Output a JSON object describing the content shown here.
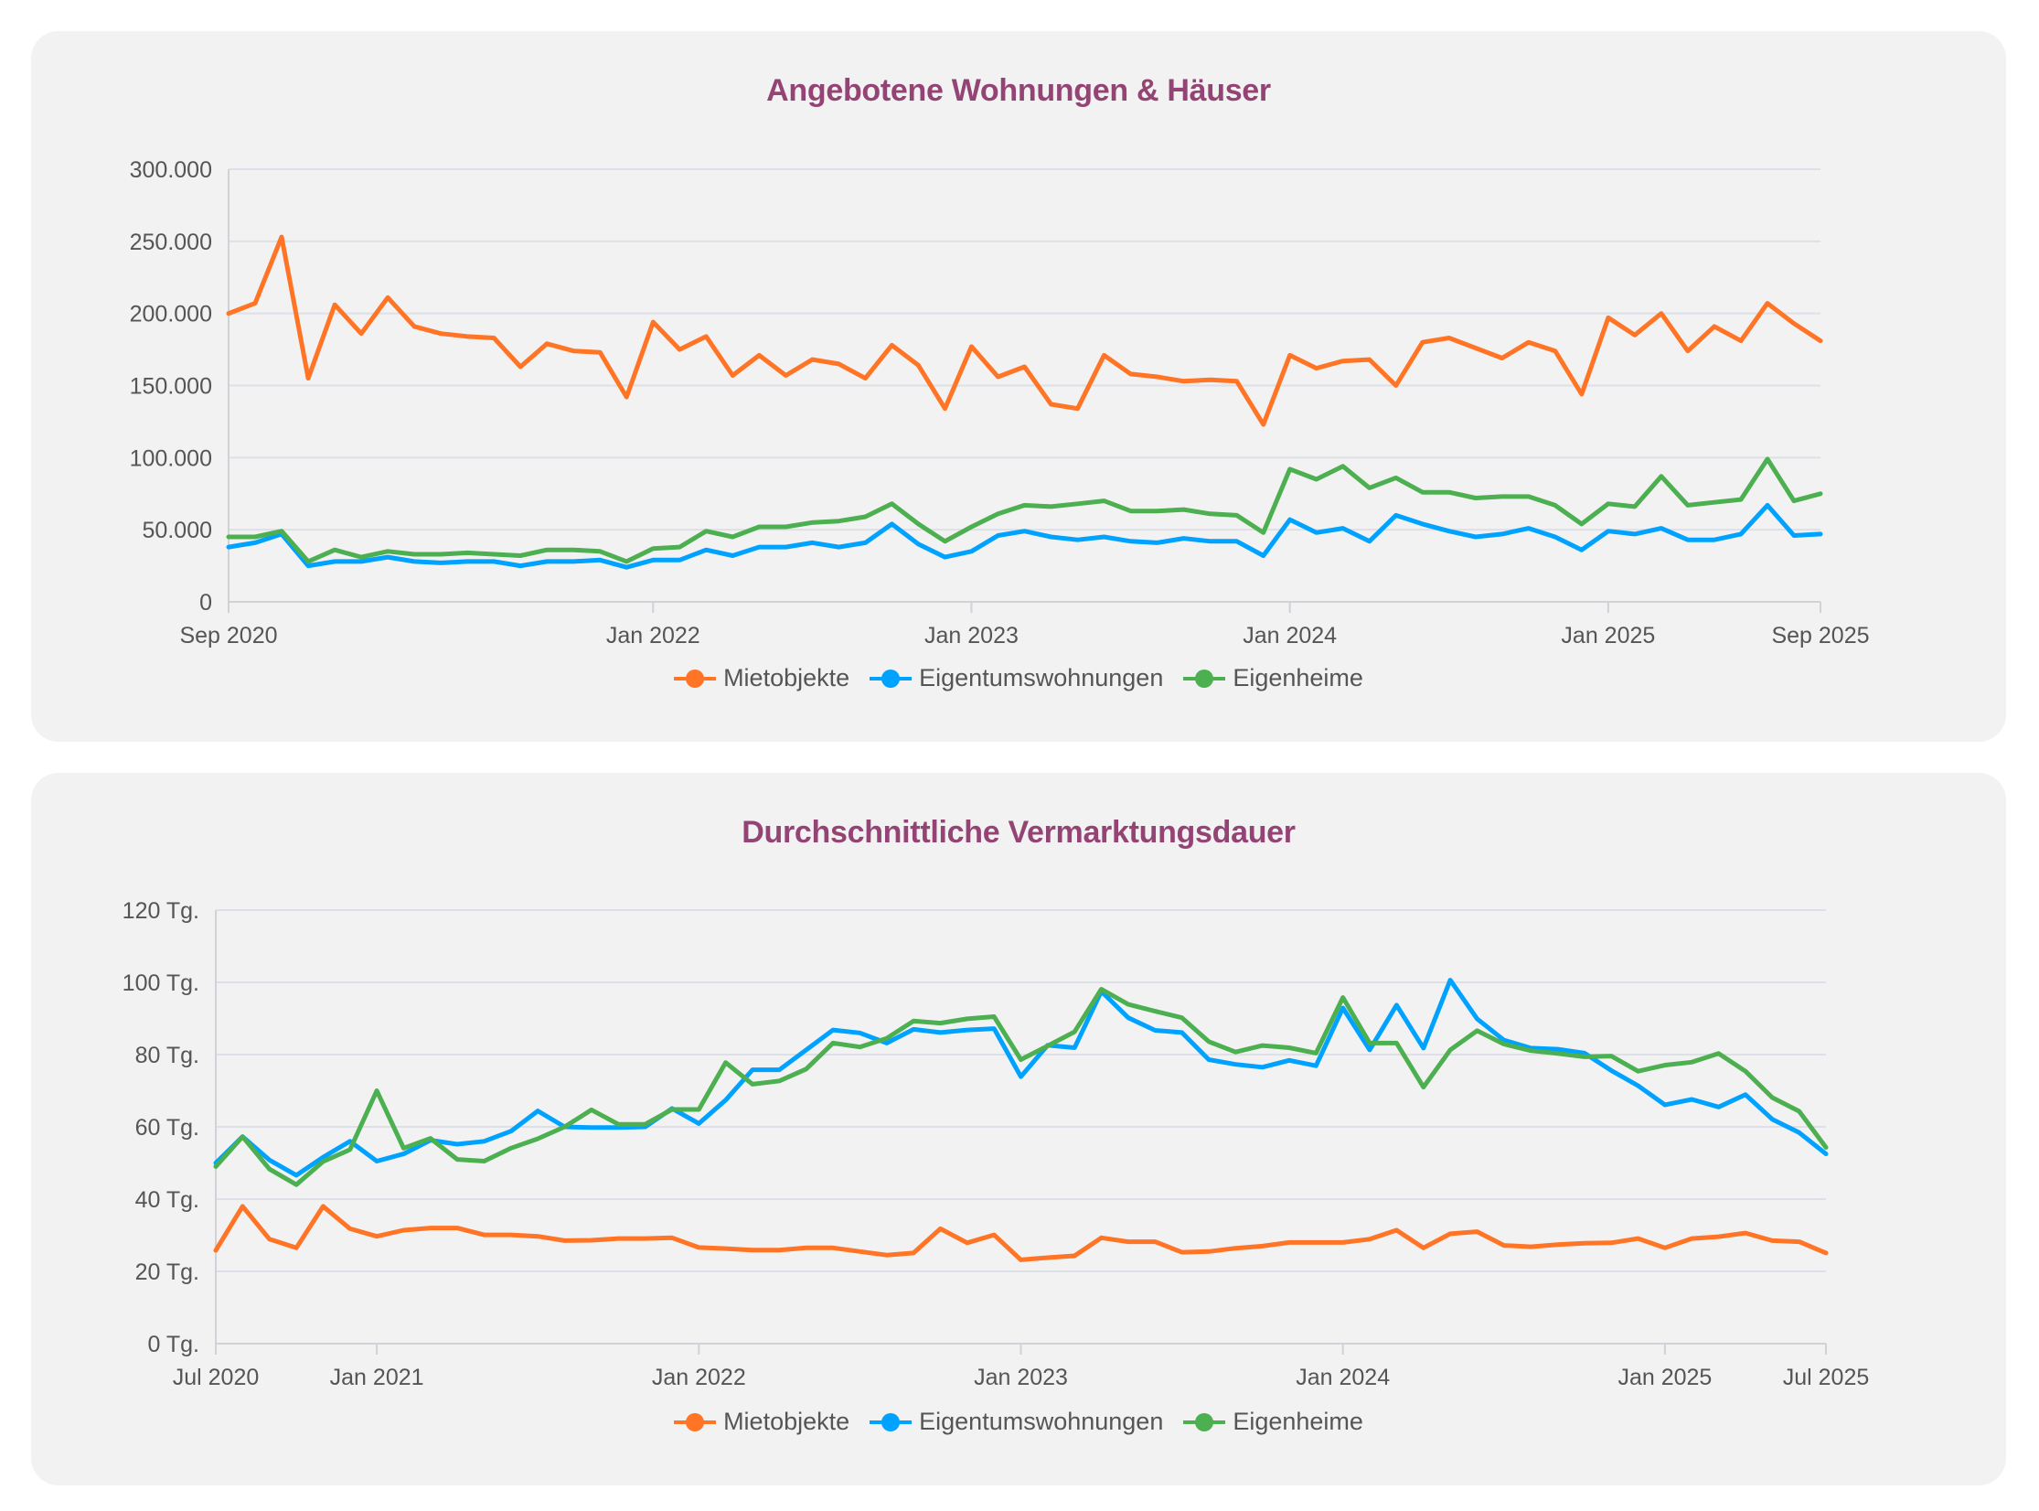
{
  "colors": {
    "mietobjekte": "#ff7425",
    "eigentumswohnungen": "#00a2ff",
    "eigenheime": "#4caf50",
    "title": "#944474"
  },
  "chart_data": [
    {
      "type": "line",
      "title": "Angebotene Wohnungen & Häuser",
      "ylim": [
        0,
        300000
      ],
      "grid": true,
      "legend": "bottom",
      "y_ticks": [
        {
          "value": 0,
          "label": "0"
        },
        {
          "value": 50000,
          "label": "50.000"
        },
        {
          "value": 100000,
          "label": "100.000"
        },
        {
          "value": 150000,
          "label": "150.000"
        },
        {
          "value": 200000,
          "label": "200.000"
        },
        {
          "value": 250000,
          "label": "250.000"
        },
        {
          "value": 300000,
          "label": "300.000"
        }
      ],
      "x_ticks": [
        {
          "x": "2020-09",
          "label": "Sep 2020"
        },
        {
          "x": "2022-01",
          "label": "Jan 2022"
        },
        {
          "x": "2023-01",
          "label": "Jan 2023"
        },
        {
          "x": "2024-01",
          "label": "Jan 2024"
        },
        {
          "x": "2025-01",
          "label": "Jan 2025"
        },
        {
          "x": "2025-09",
          "label": "Sep 2025"
        }
      ],
      "x": [
        "2020-09",
        "2020-10",
        "2020-11",
        "2020-12",
        "2021-01",
        "2021-02",
        "2021-03",
        "2021-04",
        "2021-05",
        "2021-06",
        "2021-07",
        "2021-08",
        "2021-09",
        "2021-10",
        "2021-11",
        "2021-12",
        "2022-01",
        "2022-02",
        "2022-03",
        "2022-04",
        "2022-05",
        "2022-06",
        "2022-07",
        "2022-08",
        "2022-09",
        "2022-10",
        "2022-11",
        "2022-12",
        "2023-01",
        "2023-02",
        "2023-03",
        "2023-04",
        "2023-05",
        "2023-06",
        "2023-07",
        "2023-08",
        "2023-09",
        "2023-10",
        "2023-11",
        "2023-12",
        "2024-01",
        "2024-02",
        "2024-03",
        "2024-04",
        "2024-05",
        "2024-06",
        "2024-07",
        "2024-08",
        "2024-09",
        "2024-10",
        "2024-11",
        "2024-12",
        "2025-01",
        "2025-02",
        "2025-03",
        "2025-04",
        "2025-05",
        "2025-06",
        "2025-07",
        "2025-08",
        "2025-09"
      ],
      "series": [
        {
          "name": "Mietobjekte",
          "color": "#ff7425",
          "values": [
            200000,
            207000,
            253000,
            155000,
            206000,
            186000,
            211000,
            191000,
            186000,
            184000,
            183000,
            163000,
            179000,
            174000,
            173000,
            142000,
            194000,
            175000,
            184000,
            157000,
            171000,
            157000,
            168000,
            165000,
            155000,
            178000,
            164000,
            134000,
            177000,
            156000,
            163000,
            137000,
            134000,
            171000,
            158000,
            156000,
            153000,
            154000,
            153000,
            123000,
            171000,
            162000,
            167000,
            168000,
            150000,
            180000,
            183000,
            176000,
            169000,
            180000,
            174000,
            144000,
            197000,
            185000,
            200000,
            174000,
            191000,
            181000,
            207000,
            193000,
            181000
          ]
        },
        {
          "name": "Eigentumswohnungen",
          "color": "#00a2ff",
          "values": [
            38000,
            41000,
            47000,
            25000,
            28000,
            28000,
            31000,
            28000,
            27000,
            28000,
            28000,
            25000,
            28000,
            28000,
            29000,
            24000,
            29000,
            29000,
            36000,
            32000,
            38000,
            38000,
            41000,
            38000,
            41000,
            54000,
            40000,
            31000,
            35000,
            46000,
            49000,
            45000,
            43000,
            45000,
            42000,
            41000,
            44000,
            42000,
            42000,
            32000,
            57000,
            48000,
            51000,
            42000,
            60000,
            54000,
            49000,
            45000,
            47000,
            51000,
            45000,
            36000,
            49000,
            47000,
            51000,
            43000,
            43000,
            47000,
            67000,
            46000,
            47000
          ]
        },
        {
          "name": "Eigenheime",
          "color": "#4caf50",
          "values": [
            45000,
            45000,
            49000,
            28000,
            36000,
            31000,
            35000,
            33000,
            33000,
            34000,
            33000,
            32000,
            36000,
            36000,
            35000,
            28000,
            37000,
            38000,
            49000,
            45000,
            52000,
            52000,
            55000,
            56000,
            59000,
            68000,
            54000,
            42000,
            52000,
            61000,
            67000,
            66000,
            68000,
            70000,
            63000,
            63000,
            64000,
            61000,
            60000,
            48000,
            92000,
            85000,
            94000,
            79000,
            86000,
            76000,
            76000,
            72000,
            73000,
            73000,
            67000,
            54000,
            68000,
            66000,
            87000,
            67000,
            69000,
            71000,
            99000,
            70000,
            75000
          ]
        }
      ]
    },
    {
      "type": "line",
      "title": "Durchschnittliche Vermarktungsdauer",
      "ylim": [
        0,
        120
      ],
      "grid": true,
      "legend": "bottom",
      "y_ticks": [
        {
          "value": 0,
          "label": "0 Tg."
        },
        {
          "value": 20,
          "label": "20 Tg."
        },
        {
          "value": 40,
          "label": "40 Tg."
        },
        {
          "value": 60,
          "label": "60 Tg."
        },
        {
          "value": 80,
          "label": "80 Tg."
        },
        {
          "value": 100,
          "label": "100 Tg."
        },
        {
          "value": 120,
          "label": "120 Tg."
        }
      ],
      "x_ticks": [
        {
          "x": "2020-07",
          "label": "Jul 2020"
        },
        {
          "x": "2021-01",
          "label": "Jan 2021"
        },
        {
          "x": "2022-01",
          "label": "Jan 2022"
        },
        {
          "x": "2023-01",
          "label": "Jan 2023"
        },
        {
          "x": "2024-01",
          "label": "Jan 2024"
        },
        {
          "x": "2025-01",
          "label": "Jan 2025"
        },
        {
          "x": "2025-07",
          "label": "Jul 2025"
        }
      ],
      "x": [
        "2020-07",
        "2020-08",
        "2020-09",
        "2020-10",
        "2020-11",
        "2020-12",
        "2021-01",
        "2021-02",
        "2021-03",
        "2021-04",
        "2021-05",
        "2021-06",
        "2021-07",
        "2021-08",
        "2021-09",
        "2021-10",
        "2021-11",
        "2021-12",
        "2022-01",
        "2022-02",
        "2022-03",
        "2022-04",
        "2022-05",
        "2022-06",
        "2022-07",
        "2022-08",
        "2022-09",
        "2022-10",
        "2022-11",
        "2022-12",
        "2023-01",
        "2023-02",
        "2023-03",
        "2023-04",
        "2023-05",
        "2023-06",
        "2023-07",
        "2023-08",
        "2023-09",
        "2023-10",
        "2023-11",
        "2023-12",
        "2024-01",
        "2024-02",
        "2024-03",
        "2024-04",
        "2024-05",
        "2024-06",
        "2024-07",
        "2024-08",
        "2024-09",
        "2024-10",
        "2024-11",
        "2024-12",
        "2025-01",
        "2025-02",
        "2025-03",
        "2025-04",
        "2025-05",
        "2025-06",
        "2025-07"
      ],
      "series": [
        {
          "name": "Mietobjekte",
          "color": "#ff7425",
          "values": [
            25.8,
            38,
            28.9,
            26.5,
            38,
            31.8,
            29.7,
            31.4,
            32,
            32,
            30.1,
            30.1,
            29.7,
            28.5,
            28.6,
            29.1,
            29.1,
            29.3,
            26.6,
            26.3,
            25.9,
            25.9,
            26.5,
            26.5,
            25.5,
            24.5,
            25.1,
            31.8,
            27.9,
            30.1,
            23.2,
            23.8,
            24.3,
            29.3,
            28.2,
            28.2,
            25.3,
            25.5,
            26.4,
            27,
            28,
            28,
            28,
            28.9,
            31.4,
            26.5,
            30.4,
            31,
            27.2,
            26.8,
            27.4,
            27.8,
            27.9,
            29.1,
            26.5,
            29.1,
            29.6,
            30.6,
            28.5,
            28.2,
            25.1
          ]
        },
        {
          "name": "Eigentumswohnungen",
          "color": "#00a2ff",
          "values": [
            50,
            57.3,
            50.8,
            46.6,
            51.6,
            56,
            50.5,
            52.5,
            56.3,
            55.2,
            56,
            58.8,
            64.4,
            60,
            59.8,
            59.8,
            60,
            65.1,
            60.9,
            67.4,
            75.8,
            75.8,
            81.3,
            86.8,
            86,
            83.2,
            87,
            86.1,
            86.8,
            87.2,
            73.9,
            82.6,
            81.9,
            97.5,
            90.2,
            86.7,
            86.1,
            78.6,
            77.3,
            76.5,
            78.4,
            76.9,
            92.9,
            81.3,
            93.7,
            81.8,
            100.6,
            89.9,
            84,
            81.8,
            81.5,
            80.4,
            75.6,
            71.4,
            66.1,
            67.6,
            65.5,
            68.9,
            62.1,
            58.4,
            52.5
          ]
        },
        {
          "name": "Eigenheime",
          "color": "#4caf50",
          "values": [
            49,
            57.3,
            48.3,
            44,
            50.4,
            53.7,
            70,
            54.1,
            56.8,
            51,
            50.5,
            54.1,
            56.7,
            60,
            64.7,
            60.7,
            60.7,
            64.8,
            64.8,
            77.8,
            71.8,
            72.7,
            76,
            83.2,
            82.1,
            84.5,
            89.3,
            88.7,
            89.9,
            90.5,
            78.6,
            82.4,
            86.3,
            98.1,
            93.9,
            92,
            90.2,
            83.6,
            80.7,
            82.5,
            81.9,
            80.4,
            95.8,
            83.2,
            83.2,
            71,
            81.3,
            86.6,
            82.9,
            81.1,
            80.3,
            79.4,
            79.6,
            75.4,
            77.1,
            77.9,
            80.3,
            75.4,
            68.1,
            64.3,
            54.3
          ]
        }
      ]
    }
  ]
}
